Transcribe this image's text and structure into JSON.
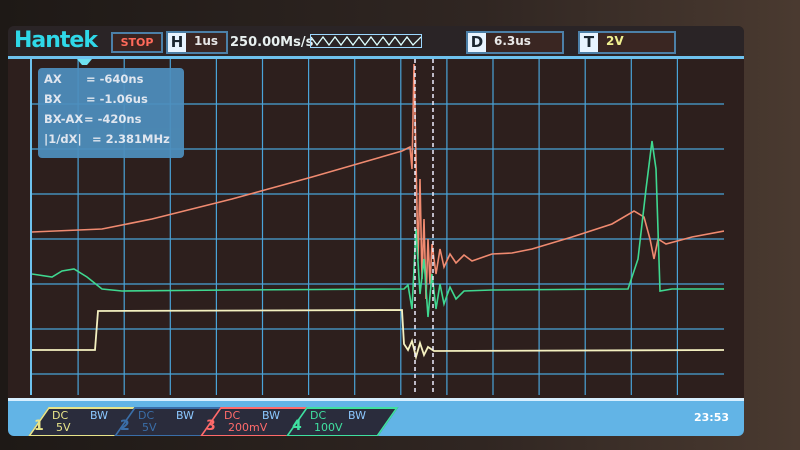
{
  "header": {
    "brand": "Hantek",
    "run_state": "STOP",
    "horizontal_key": "H",
    "timebase": "1us",
    "sample_rate": "250.00Ms/s",
    "delay_key": "D",
    "delay": "6.3us",
    "trigger_key": "T",
    "trigger_level": "2V"
  },
  "cursors": {
    "rows": [
      {
        "label": "AX",
        "value": "= -640ns"
      },
      {
        "label": "BX",
        "value": "= -1.06us"
      },
      {
        "label": "BX-AX",
        "value": "= -420ns"
      },
      {
        "label": "|1/dX|",
        "value": "= 2.381MHz"
      }
    ]
  },
  "channels": [
    {
      "number": "1",
      "coupling": "DC",
      "bw": "BW",
      "scale": "5V",
      "color": "#e8e48a"
    },
    {
      "number": "2",
      "coupling": "DC",
      "bw": "BW",
      "scale": "5V",
      "color": "#3a6ea8"
    },
    {
      "number": "3",
      "coupling": "DC",
      "bw": "BW",
      "scale": "200mV",
      "color": "#ff6a6a"
    },
    {
      "number": "4",
      "coupling": "DC",
      "bw": "BW",
      "scale": "100V",
      "color": "#3fe0a0"
    }
  ],
  "clock": "23:53",
  "colors": {
    "frame": "#6ec2ee",
    "ch1_trace": "#f4f0c0",
    "ch3_trace": "#f08a70",
    "ch4_trace": "#3fd890"
  }
}
